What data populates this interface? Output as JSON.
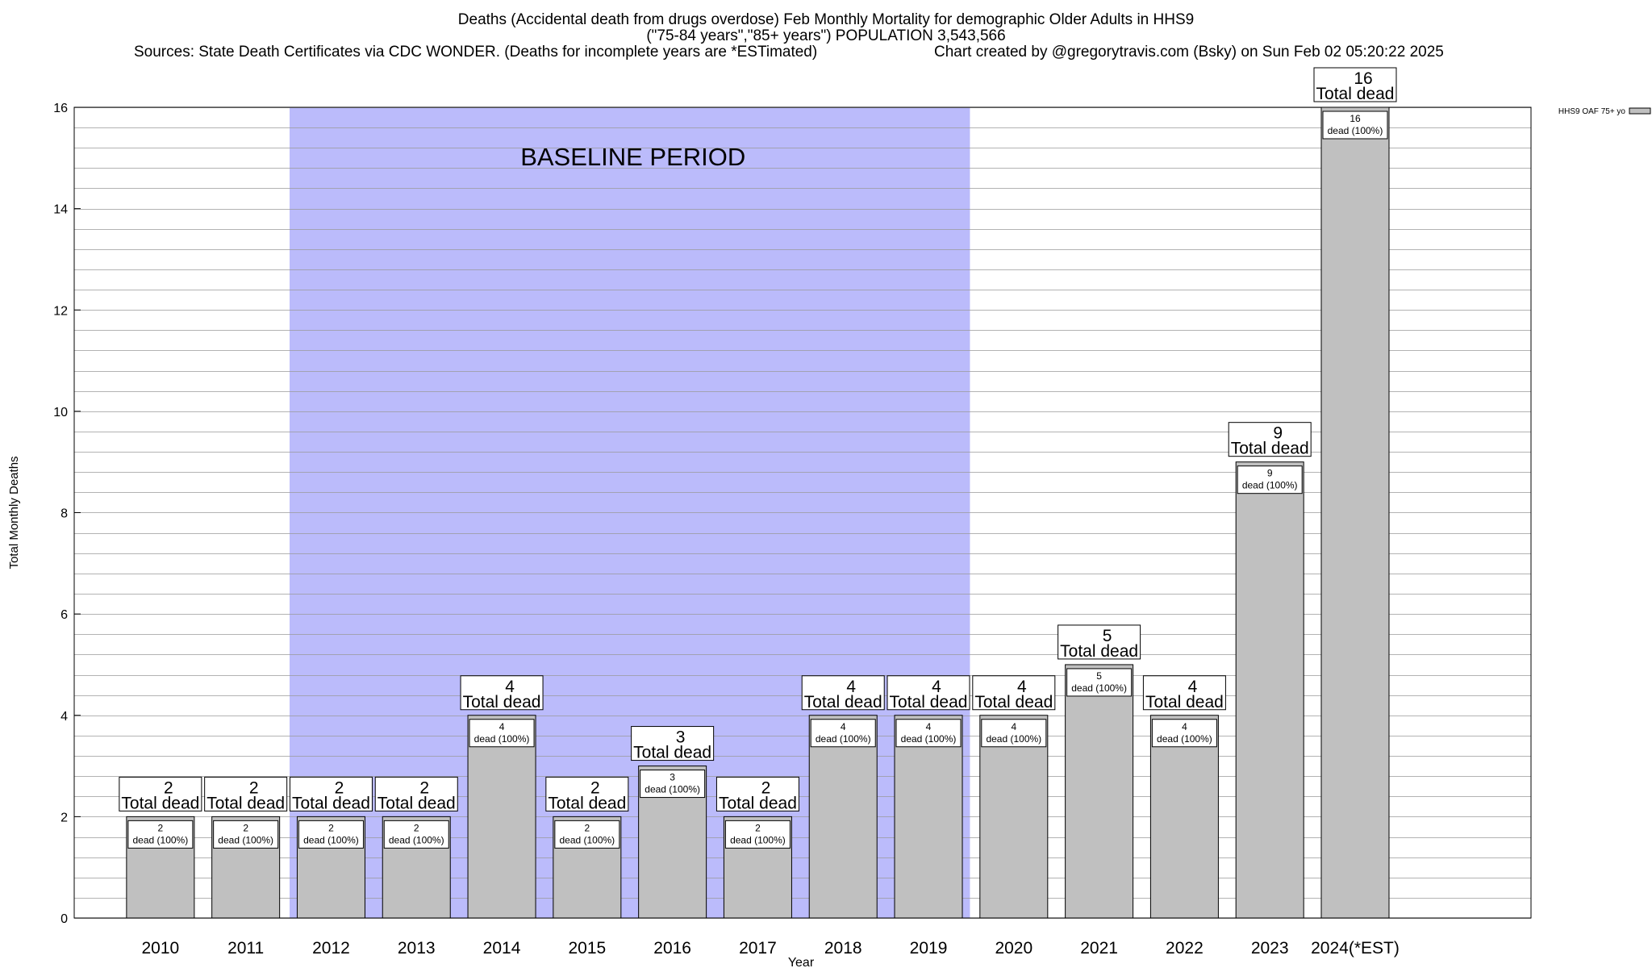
{
  "header": {
    "title_line1": "Deaths (Accidental death from drugs overdose) Feb Monthly Mortality for demographic Older Adults in HHS9",
    "title_line2": "(\"75-84 years\",\"85+ years\") POPULATION 3,543,566",
    "sources": "Sources: State Death Certificates via CDC WONDER. (Deaths for incomplete years are *ESTimated)",
    "credit": "Chart created by @gregorytravis.com (Bsky) on Sun Feb 02 05:20:22 2025"
  },
  "chart_data": {
    "type": "bar",
    "xlabel": "Year",
    "ylabel": "Total Monthly Deaths",
    "ylim": [
      0,
      16
    ],
    "y_ticks": [
      0,
      2,
      4,
      6,
      8,
      10,
      12,
      14,
      16
    ],
    "grid": true,
    "minor_grid_step": 0.4,
    "legend_position": "top-right",
    "categories": [
      "2010",
      "2011",
      "2012",
      "2013",
      "2014",
      "2015",
      "2016",
      "2017",
      "2018",
      "2019",
      "2020",
      "2021",
      "2022",
      "2023",
      "2024(*EST)"
    ],
    "series": [
      {
        "name": "HHS9 OAF 75+ yo",
        "color": "#c0c0c0",
        "values": [
          2,
          2,
          2,
          2,
          4,
          2,
          3,
          2,
          4,
          4,
          4,
          5,
          4,
          9,
          16
        ]
      }
    ],
    "top_label_suffix": "Total dead",
    "inner_label_text": "dead (100%)",
    "baseline": {
      "label": "BASELINE PERIOD",
      "from": "2012",
      "to": "2019",
      "color": "#bbbbfb"
    }
  }
}
